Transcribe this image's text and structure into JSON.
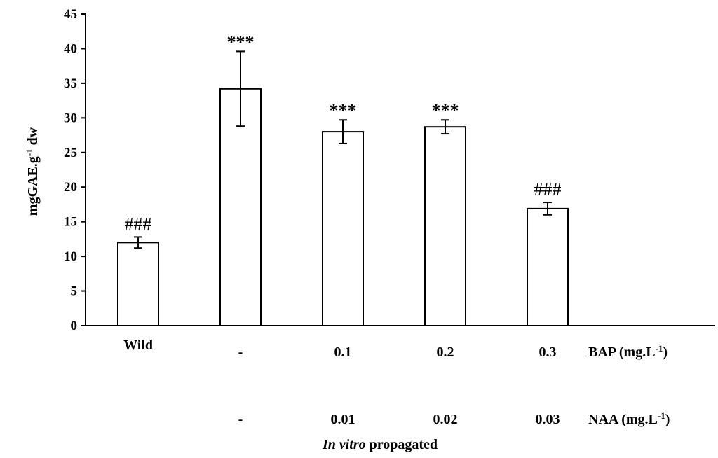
{
  "chart_data": {
    "type": "bar",
    "ylabel_main": "mgGAE.g",
    "ylabel_sup": "-1",
    "ylabel_tail": " dw",
    "ylim": [
      0,
      45
    ],
    "yticks": [
      0,
      5,
      10,
      15,
      20,
      25,
      30,
      35,
      40,
      45
    ],
    "grid": false,
    "bars": [
      {
        "value": 12.0,
        "error": 0.8,
        "annotation": "###",
        "annotation_style": "hash"
      },
      {
        "value": 34.2,
        "error": 5.4,
        "annotation": "***",
        "annotation_style": "star"
      },
      {
        "value": 28.0,
        "error": 1.7,
        "annotation": "***",
        "annotation_style": "star"
      },
      {
        "value": 28.7,
        "error": 1.0,
        "annotation": "***",
        "annotation_style": "star"
      },
      {
        "value": 16.9,
        "error": 0.9,
        "annotation": "###",
        "annotation_style": "hash"
      }
    ],
    "row1": {
      "labels": [
        "Wild",
        "-",
        "0.1",
        "0.2",
        "0.3"
      ],
      "name_main": "BAP (mg.L",
      "name_sup": "-1",
      "name_tail": ")"
    },
    "row2": {
      "labels": [
        "",
        "-",
        "0.01",
        "0.02",
        "0.03"
      ],
      "name_main": "NAA (mg.L",
      "name_sup": "-1",
      "name_tail": ")"
    },
    "xlabel_italic": "In vitro",
    "xlabel_rest": " propagated"
  }
}
